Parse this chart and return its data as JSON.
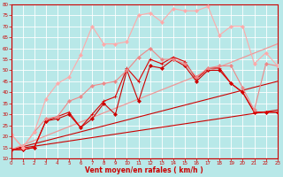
{
  "xlabel": "Vent moyen/en rafales ( km/h )",
  "xlim": [
    0,
    23
  ],
  "ylim": [
    10,
    80
  ],
  "yticks": [
    10,
    15,
    20,
    25,
    30,
    35,
    40,
    45,
    50,
    55,
    60,
    65,
    70,
    75,
    80
  ],
  "xticks": [
    0,
    1,
    2,
    3,
    4,
    5,
    6,
    7,
    8,
    9,
    10,
    11,
    12,
    13,
    14,
    15,
    16,
    17,
    18,
    19,
    20,
    21,
    22,
    23
  ],
  "bg_color": "#b8e8e8",
  "grid_color": "#ffffff",
  "series": [
    {
      "x": [
        0,
        23
      ],
      "y": [
        14,
        32
      ],
      "color": "#cc0000",
      "lw": 0.8,
      "marker": null,
      "ms": 0
    },
    {
      "x": [
        0,
        23
      ],
      "y": [
        14,
        45
      ],
      "color": "#cc0000",
      "lw": 0.8,
      "marker": null,
      "ms": 0
    },
    {
      "x": [
        0,
        23
      ],
      "y": [
        14,
        62
      ],
      "color": "#ee9999",
      "lw": 0.9,
      "marker": null,
      "ms": 0
    },
    {
      "x": [
        0,
        1,
        2,
        3,
        4,
        5,
        6,
        7,
        8,
        9,
        10,
        11,
        12,
        13,
        14,
        15,
        16,
        17,
        18,
        19,
        20,
        21,
        22,
        23
      ],
      "y": [
        14,
        14,
        15,
        27,
        28,
        30,
        24,
        28,
        35,
        30,
        50,
        36,
        52,
        51,
        55,
        52,
        45,
        50,
        50,
        44,
        40,
        31,
        31,
        31
      ],
      "color": "#cc0000",
      "lw": 0.8,
      "marker": "D",
      "ms": 2
    },
    {
      "x": [
        0,
        1,
        2,
        3,
        4,
        5,
        6,
        7,
        8,
        9,
        10,
        11,
        12,
        13,
        14,
        15,
        16,
        17,
        18,
        19,
        20,
        21,
        22,
        23
      ],
      "y": [
        14,
        14,
        15,
        27,
        29,
        31,
        24,
        30,
        36,
        38,
        51,
        45,
        55,
        53,
        56,
        54,
        46,
        51,
        51,
        44,
        40,
        31,
        31,
        31
      ],
      "color": "#dd0000",
      "lw": 0.8,
      "marker": "+",
      "ms": 3
    },
    {
      "x": [
        0,
        1,
        2,
        3,
        4,
        5,
        6,
        7,
        8,
        9,
        10,
        11,
        12,
        13,
        14,
        15,
        16,
        17,
        18,
        19,
        20,
        21,
        22,
        23
      ],
      "y": [
        21,
        15,
        22,
        28,
        29,
        36,
        38,
        43,
        44,
        45,
        50,
        56,
        60,
        55,
        55,
        53,
        47,
        51,
        52,
        52,
        42,
        32,
        53,
        52
      ],
      "color": "#ee8888",
      "lw": 0.8,
      "marker": "D",
      "ms": 2
    },
    {
      "x": [
        0,
        1,
        2,
        3,
        4,
        5,
        6,
        7,
        8,
        9,
        10,
        11,
        12,
        13,
        14,
        15,
        16,
        17,
        18,
        19,
        20,
        21,
        22,
        23
      ],
      "y": [
        21,
        15,
        22,
        37,
        44,
        47,
        57,
        70,
        62,
        62,
        63,
        75,
        76,
        72,
        78,
        77,
        77,
        79,
        66,
        70,
        70,
        53,
        58,
        52
      ],
      "color": "#ffaaaa",
      "lw": 0.8,
      "marker": "D",
      "ms": 2
    }
  ]
}
